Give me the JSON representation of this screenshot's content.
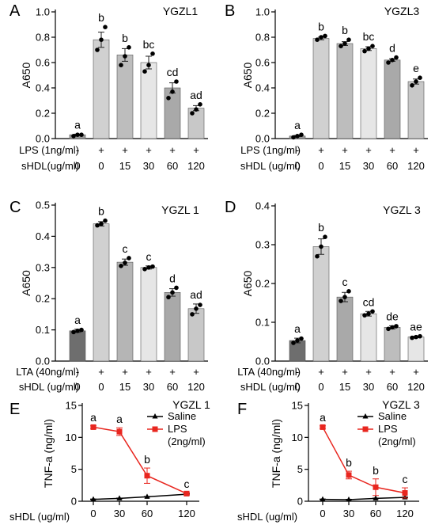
{
  "chart_data": [
    {
      "panel": "A",
      "type": "bar",
      "title": "YGZL1",
      "ylabel": "A650",
      "ylim": [
        0,
        1.0
      ],
      "yticks": [
        0.0,
        0.2,
        0.4,
        0.6,
        0.8,
        1.0
      ],
      "yticklabels": [
        "0.0",
        "0.2",
        "0.4",
        "0.6",
        "0.8",
        "1.0"
      ],
      "bar_colors": [
        "#9a9a9a",
        "#d0d0d0",
        "#bdbdbd",
        "#e6e6e6",
        "#a9a9a9",
        "#c8c8c8"
      ],
      "values": [
        0.03,
        0.78,
        0.66,
        0.6,
        0.4,
        0.24
      ],
      "errors": [
        0.005,
        0.06,
        0.05,
        0.05,
        0.04,
        0.02
      ],
      "points": [
        [
          0.02,
          0.03,
          0.03
        ],
        [
          0.7,
          0.78,
          0.88
        ],
        [
          0.58,
          0.65,
          0.72
        ],
        [
          0.53,
          0.58,
          0.67
        ],
        [
          0.32,
          0.37,
          0.45
        ],
        [
          0.2,
          0.23,
          0.27
        ]
      ],
      "significance": [
        "a",
        "b",
        "b",
        "bc",
        "cd",
        "ad"
      ],
      "condition_rows": [
        {
          "label": "LPS (1ng/ml)",
          "values": [
            "-",
            "+",
            "+",
            "+",
            "+",
            "+"
          ]
        },
        {
          "label": "sHDL(ug/ml)",
          "values": [
            "0",
            "0",
            "15",
            "30",
            "60",
            "120"
          ]
        }
      ]
    },
    {
      "panel": "B",
      "type": "bar",
      "title": "YGZL3",
      "ylabel": "A650",
      "ylim": [
        0,
        1.0
      ],
      "yticks": [
        0.0,
        0.2,
        0.4,
        0.6,
        0.8,
        1.0
      ],
      "yticklabels": [
        "0.0",
        "0.2",
        "0.4",
        "0.6",
        "0.8",
        "1.0"
      ],
      "bar_colors": [
        "#9a9a9a",
        "#d0d0d0",
        "#bdbdbd",
        "#e6e6e6",
        "#a9a9a9",
        "#c8c8c8"
      ],
      "values": [
        0.02,
        0.79,
        0.75,
        0.71,
        0.62,
        0.45
      ],
      "errors": [
        0.005,
        0.01,
        0.015,
        0.015,
        0.01,
        0.02
      ],
      "points": [
        [
          0.01,
          0.02,
          0.03
        ],
        [
          0.78,
          0.8,
          0.81
        ],
        [
          0.73,
          0.75,
          0.78
        ],
        [
          0.69,
          0.71,
          0.73
        ],
        [
          0.6,
          0.62,
          0.64
        ],
        [
          0.42,
          0.45,
          0.48
        ]
      ],
      "significance": [
        "a",
        "b",
        "b",
        "bc",
        "d",
        "e"
      ],
      "condition_rows": [
        {
          "label": "LPS (1ng/ml)",
          "values": [
            "-",
            "+",
            "+",
            "+",
            "+",
            "+"
          ]
        },
        {
          "label": "sHDL (ug/ml)",
          "values": [
            "0",
            "0",
            "15",
            "30",
            "60",
            "120"
          ]
        }
      ]
    },
    {
      "panel": "C",
      "type": "bar",
      "title": "YGZL 1",
      "ylabel": "A650",
      "ylim": [
        0,
        0.5
      ],
      "yticks": [
        0.0,
        0.1,
        0.2,
        0.3,
        0.4,
        0.5
      ],
      "yticklabels": [
        "0.0",
        "0.1",
        "0.2",
        "0.3",
        "0.4",
        "0.5"
      ],
      "bar_colors": [
        "#6e6e6e",
        "#d0d0d0",
        "#b5b5b5",
        "#e6e6e6",
        "#a9a9a9",
        "#c8c8c8"
      ],
      "values": [
        0.097,
        0.44,
        0.317,
        0.3,
        0.22,
        0.168
      ],
      "errors": [
        0.005,
        0.007,
        0.01,
        0.005,
        0.012,
        0.015
      ],
      "points": [
        [
          0.093,
          0.097,
          0.1
        ],
        [
          0.435,
          0.44,
          0.45
        ],
        [
          0.305,
          0.315,
          0.33
        ],
        [
          0.295,
          0.3,
          0.303
        ],
        [
          0.205,
          0.22,
          0.235
        ],
        [
          0.15,
          0.168,
          0.18
        ]
      ],
      "significance": [
        "a",
        "b",
        "c",
        "c",
        "d",
        "ad"
      ],
      "condition_rows": [
        {
          "label": "LTA (40ng/ml)",
          "values": [
            "-",
            "+",
            "+",
            "+",
            "+",
            "+"
          ]
        },
        {
          "label": "sHDL (ug/ml)",
          "values": [
            "0",
            "0",
            "15",
            "30",
            "60",
            "120"
          ]
        }
      ]
    },
    {
      "panel": "D",
      "type": "bar",
      "title": "YGZL 3",
      "ylabel": "A650",
      "ylim": [
        0,
        0.4
      ],
      "yticks": [
        0.0,
        0.1,
        0.2,
        0.3,
        0.4
      ],
      "yticklabels": [
        "0.0",
        "0.1",
        "0.2",
        "0.3",
        "0.4"
      ],
      "bar_colors": [
        "#6e6e6e",
        "#d0d0d0",
        "#a9a9a9",
        "#e6e6e6",
        "#bdbdbd",
        "#e6e6e6"
      ],
      "values": [
        0.053,
        0.295,
        0.165,
        0.122,
        0.087,
        0.062
      ],
      "errors": [
        0.006,
        0.02,
        0.012,
        0.006,
        0.004,
        0.002
      ],
      "points": [
        [
          0.047,
          0.053,
          0.058
        ],
        [
          0.27,
          0.295,
          0.32
        ],
        [
          0.155,
          0.165,
          0.18
        ],
        [
          0.118,
          0.122,
          0.128
        ],
        [
          0.083,
          0.087,
          0.09
        ],
        [
          0.06,
          0.062,
          0.064
        ]
      ],
      "significance": [
        "a",
        "b",
        "c",
        "cd",
        "de",
        "ae"
      ],
      "condition_rows": [
        {
          "label": "LTA (40ng/ml)",
          "values": [
            "-",
            "+",
            "+",
            "+",
            "+",
            "+"
          ]
        },
        {
          "label": "sHDL (ug/ml)",
          "values": [
            "0",
            "0",
            "15",
            "30",
            "60",
            "120"
          ]
        }
      ]
    },
    {
      "panel": "E",
      "type": "line",
      "title": "YGZL 1",
      "ylabel": "TNF-a (ng/ml)",
      "xlabel": "sHDL (ug/ml)",
      "ylim": [
        0,
        15
      ],
      "yticks": [
        0,
        5,
        10,
        15
      ],
      "yticklabels": [
        "0",
        "5",
        "10",
        "15"
      ],
      "x": [
        0,
        30,
        60,
        120
      ],
      "xticklabels": [
        "0",
        "30",
        "60",
        "120"
      ],
      "series": [
        {
          "name": "Saline",
          "color": "#000000",
          "marker": "triangle",
          "values": [
            0.3,
            0.45,
            0.7,
            1.1
          ],
          "errors": [
            0.05,
            0.05,
            0.05,
            0.1
          ]
        },
        {
          "name": "LPS (2ng/ml)",
          "color": "#e8261f",
          "marker": "square",
          "values": [
            11.6,
            10.9,
            4.0,
            1.2
          ],
          "errors": [
            0.2,
            0.6,
            1.2,
            0.15
          ]
        }
      ],
      "significance": [
        "a",
        "a",
        "b",
        "c"
      ]
    },
    {
      "panel": "F",
      "type": "line",
      "title": "YGZL 3",
      "ylabel": "TNF-a (ng/ml)",
      "xlabel": "sHDL (ug/ml)",
      "ylim": [
        0,
        15
      ],
      "yticks": [
        0,
        5,
        10,
        15
      ],
      "yticklabels": [
        "0",
        "5",
        "10",
        "15"
      ],
      "x": [
        0,
        30,
        60,
        120
      ],
      "xticklabels": [
        "0",
        "30",
        "60",
        "120"
      ],
      "series": [
        {
          "name": "Saline",
          "color": "#000000",
          "marker": "triangle",
          "values": [
            0.3,
            0.25,
            0.45,
            0.6
          ],
          "errors": [
            0.05,
            0.05,
            0.05,
            0.05
          ]
        },
        {
          "name": "LPS (2ng/ml)",
          "color": "#e8261f",
          "marker": "square",
          "values": [
            11.6,
            4.1,
            2.2,
            1.3
          ],
          "errors": [
            0.2,
            0.6,
            1.3,
            0.8
          ]
        }
      ],
      "significance": [
        "a",
        "b",
        "b",
        "c"
      ]
    }
  ]
}
